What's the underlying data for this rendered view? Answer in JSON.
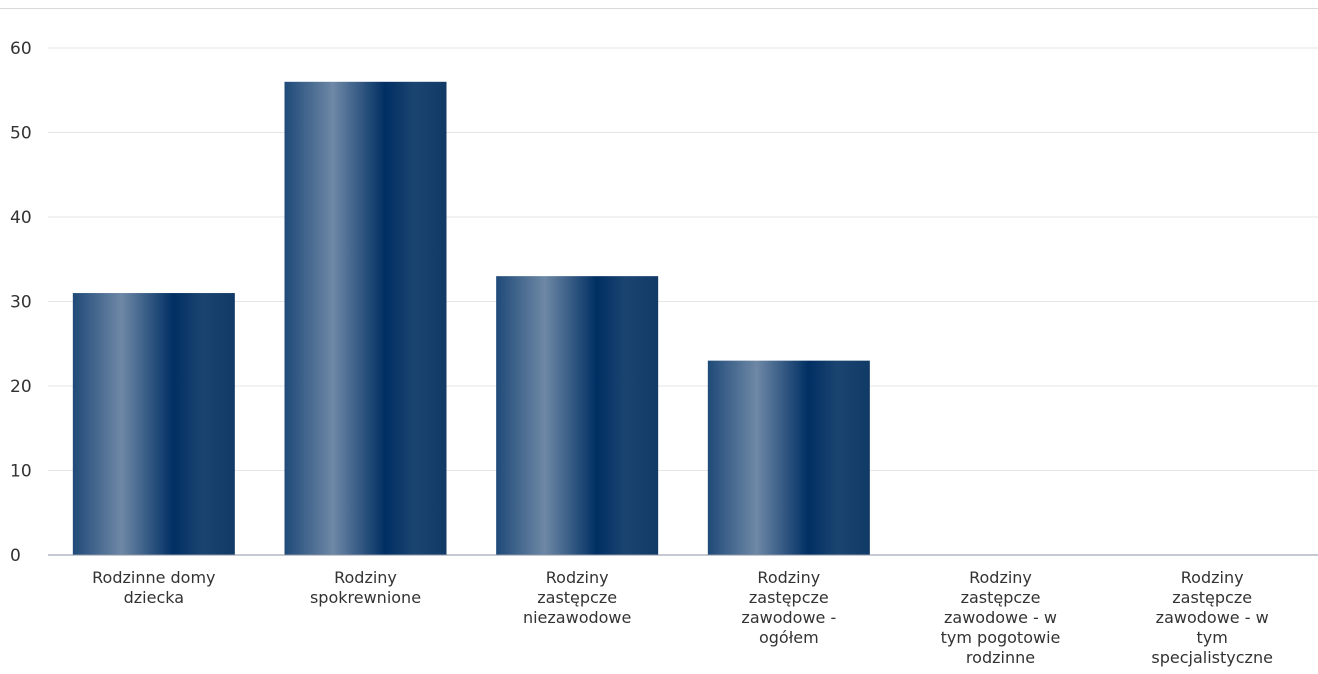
{
  "chart_data": {
    "type": "bar",
    "categories": [
      [
        "Rodzinne domy",
        "dziecka"
      ],
      [
        "Rodziny",
        "spokrewnione"
      ],
      [
        "Rodziny",
        "zastępcze",
        "niezawodowe"
      ],
      [
        "Rodziny",
        "zastępcze",
        "zawodowe -",
        "ogółem"
      ],
      [
        "Rodziny",
        "zastępcze",
        "zawodowe - w",
        "tym pogotowie",
        "rodzinne"
      ],
      [
        "Rodziny",
        "zastępcze",
        "zawodowe - w",
        "tym",
        "specjalistyczne"
      ]
    ],
    "values": [
      31,
      56,
      33,
      23,
      0,
      0
    ],
    "ylim": [
      0,
      60
    ],
    "yticks": [
      0,
      10,
      20,
      30,
      40,
      50,
      60
    ],
    "grid": true,
    "legend": "none",
    "title": "",
    "xlabel": "",
    "ylabel": "",
    "colors": {
      "bar_dark": "#002f63",
      "bar_light": "#6e88a6",
      "grid": "#e6e6e6",
      "axis": "#8a93a6",
      "text": "#333333"
    }
  }
}
